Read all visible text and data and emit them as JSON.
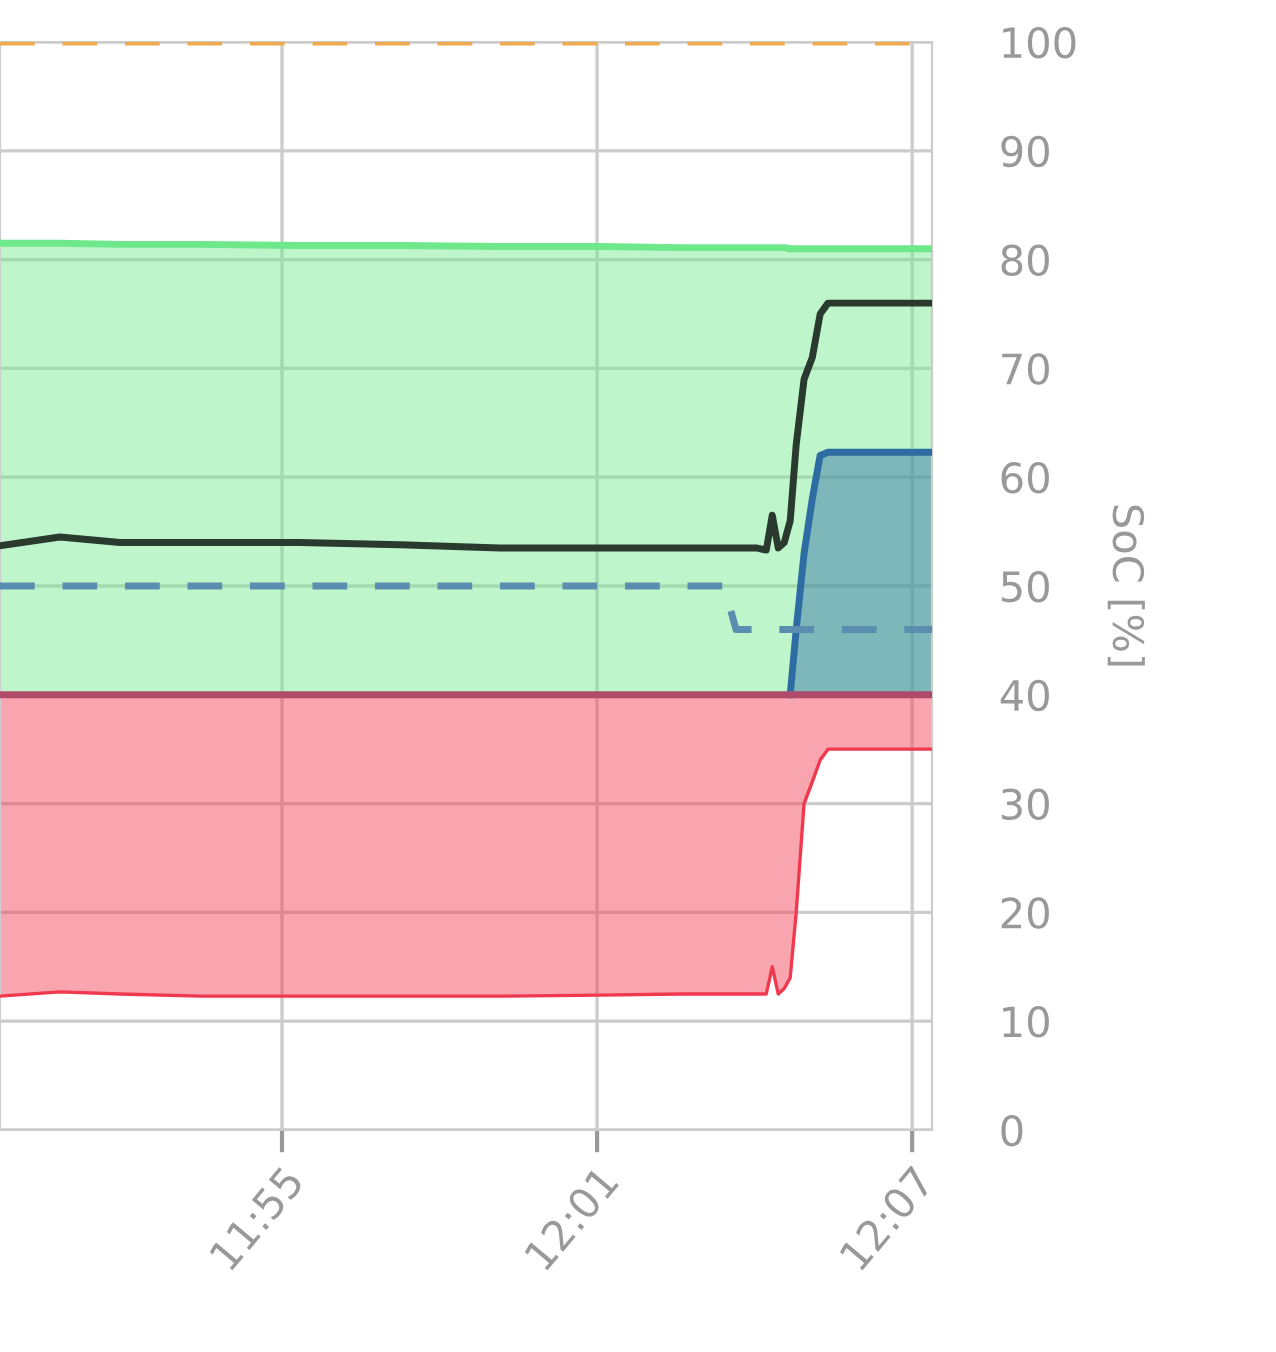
{
  "chart_data": {
    "type": "line",
    "ylabel": "SoC [%]",
    "x": [
      11.8272,
      11.8462,
      11.8653,
      11.8907,
      11.9224,
      11.9542,
      11.9859,
      12.0177,
      12.043,
      12.057,
      12.0608,
      12.0672,
      12.0704,
      12.0723,
      12.0742,
      12.0761,
      12.078,
      12.0799,
      12.0824,
      12.085,
      12.0875,
      12.09,
      12.0938,
      12.1065,
      12.123
    ],
    "series": [
      {
        "color": "#6ee88a",
        "values": [
          81.5,
          81.5,
          81.4,
          81.4,
          81.3,
          81.3,
          81.2,
          81.2,
          81.1,
          81.1,
          81.1,
          81.1,
          81.1,
          81.1,
          81.1,
          81.1,
          81.0,
          81.0,
          81.0,
          81.0,
          81.0,
          81.0,
          81.0,
          81.0,
          81.0
        ],
        "lower": [
          40,
          40,
          40,
          40,
          40,
          40,
          40,
          40,
          40,
          40,
          40,
          40,
          40,
          40,
          40,
          40,
          40,
          40,
          40,
          40,
          40,
          40,
          40,
          40,
          40
        ],
        "upper": [
          81.5,
          81.5,
          81.4,
          81.4,
          81.3,
          81.3,
          81.2,
          81.2,
          81.1,
          81.1,
          81.1,
          81.1,
          81.1,
          81.1,
          81.1,
          81.1,
          81.0,
          81.0,
          81.0,
          81.0,
          81.0,
          81.0,
          81.0,
          81.0,
          81.0
        ]
      },
      {
        "color": "#f0384e",
        "values": [
          12.3,
          12.7,
          12.5,
          12.3,
          12.3,
          12.3,
          12.3,
          12.4,
          12.5,
          12.5,
          12.5,
          12.5,
          12.5,
          15,
          12.5,
          13,
          14,
          20,
          30,
          32,
          34,
          35,
          35,
          35,
          35
        ],
        "lower": [
          12.3,
          12.7,
          12.5,
          12.3,
          12.3,
          12.3,
          12.3,
          12.4,
          12.5,
          12.5,
          12.5,
          12.5,
          12.5,
          15,
          12.5,
          13,
          14,
          20,
          30,
          32,
          34,
          35,
          35,
          35,
          35
        ],
        "upper": [
          40,
          40,
          40,
          40,
          40,
          40,
          40,
          40,
          40,
          40,
          40,
          40,
          40,
          40,
          40,
          40,
          40,
          40,
          40,
          40,
          40,
          40,
          40,
          40,
          40
        ]
      },
      {
        "color": "#2e6da4",
        "values": [
          null,
          null,
          null,
          null,
          null,
          null,
          null,
          null,
          null,
          null,
          null,
          null,
          null,
          null,
          null,
          null,
          40,
          46,
          53,
          58,
          62,
          62.3,
          62.3,
          62.3,
          62.3
        ],
        "lower": [
          null,
          null,
          null,
          null,
          null,
          null,
          null,
          null,
          null,
          null,
          null,
          null,
          null,
          null,
          null,
          null,
          40,
          40,
          40,
          40,
          40,
          40,
          40,
          40,
          40
        ],
        "upper": [
          null,
          null,
          null,
          null,
          null,
          null,
          null,
          null,
          null,
          null,
          null,
          null,
          null,
          null,
          null,
          null,
          40,
          46,
          53,
          58,
          62,
          62.3,
          62.3,
          62.3,
          62.3
        ]
      },
      {
        "color": "#5b8db0",
        "line_style": "dashed",
        "values": [
          50,
          50,
          50,
          50,
          50,
          50,
          50,
          50,
          50,
          50,
          46,
          46,
          46,
          46,
          46,
          46,
          46,
          46,
          46,
          46,
          46,
          46,
          46,
          46,
          46
        ]
      },
      {
        "color": "#2b3a2e",
        "values": [
          53.7,
          54.5,
          54,
          54,
          54,
          53.8,
          53.5,
          53.5,
          53.5,
          53.5,
          53.5,
          53.5,
          53.3,
          56.5,
          53.5,
          54,
          56,
          63,
          69,
          71,
          75,
          76,
          76,
          76,
          76
        ]
      }
    ],
    "ref_lines": [
      {
        "axis": "y",
        "value": 100,
        "color": "#f0a94e",
        "line_style": "dashed"
      },
      {
        "axis": "y",
        "value": 40,
        "color": "#b04a6a"
      }
    ],
    "xlim": [
      11.8272,
      12.123
    ],
    "xticks": [
      {
        "value": 11.9167,
        "label": "11:55"
      },
      {
        "value": 12.0167,
        "label": "12:01"
      },
      {
        "value": 12.1167,
        "label": "12:07"
      }
    ],
    "ylim": [
      0,
      100
    ],
    "yticks": [
      0,
      10,
      20,
      30,
      40,
      50,
      60,
      70,
      80,
      90,
      100
    ],
    "grid": true,
    "legend": false
  }
}
